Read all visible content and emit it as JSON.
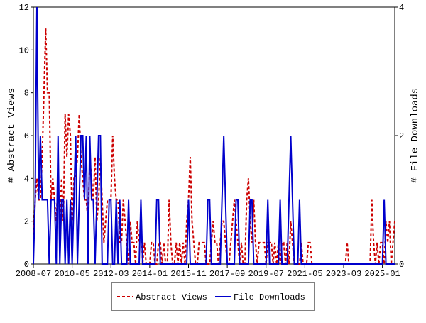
{
  "chart_data": {
    "type": "line",
    "x": [
      "2008-07",
      "2008-08",
      "2008-09",
      "2008-10",
      "2008-11",
      "2008-12",
      "2009-01",
      "2009-02",
      "2009-03",
      "2009-04",
      "2009-05",
      "2009-06",
      "2009-07",
      "2009-08",
      "2009-09",
      "2009-10",
      "2009-11",
      "2009-12",
      "2010-01",
      "2010-02",
      "2010-03",
      "2010-04",
      "2010-05",
      "2010-06",
      "2010-07",
      "2010-08",
      "2010-09",
      "2010-10",
      "2010-11",
      "2010-12",
      "2011-01",
      "2011-02",
      "2011-03",
      "2011-04",
      "2011-05",
      "2011-06",
      "2011-07",
      "2011-08",
      "2011-09",
      "2011-10",
      "2011-11",
      "2011-12",
      "2012-01",
      "2012-02",
      "2012-03",
      "2012-04",
      "2012-05",
      "2012-06",
      "2012-07",
      "2012-08",
      "2012-09",
      "2012-10",
      "2012-11",
      "2012-12",
      "2013-01",
      "2013-02",
      "2013-03",
      "2013-04",
      "2013-05",
      "2013-06",
      "2013-07",
      "2013-08",
      "2013-09",
      "2013-10",
      "2013-11",
      "2013-12",
      "2014-01",
      "2014-02",
      "2014-03",
      "2014-04",
      "2014-05",
      "2014-06",
      "2014-07",
      "2014-08",
      "2014-09",
      "2014-10",
      "2014-11",
      "2014-12",
      "2015-01",
      "2015-02",
      "2015-03",
      "2015-04",
      "2015-05",
      "2015-06",
      "2015-07",
      "2015-08",
      "2015-09",
      "2015-10",
      "2015-11",
      "2015-12",
      "2016-01",
      "2016-02",
      "2016-03",
      "2016-04",
      "2016-05",
      "2016-06",
      "2016-07",
      "2016-08",
      "2016-09",
      "2016-10",
      "2016-11",
      "2016-12",
      "2017-01",
      "2017-02",
      "2017-03",
      "2017-04",
      "2017-05",
      "2017-06",
      "2017-07",
      "2017-08",
      "2017-09",
      "2017-10",
      "2017-11",
      "2017-12",
      "2018-01",
      "2018-02",
      "2018-03",
      "2018-04",
      "2018-05",
      "2018-06",
      "2018-07",
      "2018-08",
      "2018-09",
      "2018-10",
      "2018-11",
      "2018-12",
      "2019-01",
      "2019-02",
      "2019-03",
      "2019-04",
      "2019-05",
      "2019-06",
      "2019-07",
      "2019-08",
      "2019-09",
      "2019-10",
      "2019-11",
      "2019-12",
      "2020-01",
      "2020-02",
      "2020-03",
      "2020-04",
      "2020-05",
      "2020-06",
      "2020-07",
      "2020-08",
      "2020-09",
      "2020-10",
      "2020-11",
      "2020-12",
      "2021-01",
      "2021-02",
      "2021-03",
      "2021-04",
      "2021-05",
      "2021-06",
      "2021-07",
      "2021-08",
      "2021-09",
      "2021-10",
      "2021-11",
      "2021-12",
      "2022-01",
      "2022-02",
      "2022-03",
      "2022-04",
      "2022-05",
      "2022-06",
      "2022-07",
      "2022-08",
      "2022-09",
      "2022-10",
      "2022-11",
      "2022-12",
      "2023-01",
      "2023-02",
      "2023-03",
      "2023-04",
      "2023-05",
      "2023-06",
      "2023-07",
      "2023-08",
      "2023-09",
      "2023-10",
      "2023-11",
      "2023-12",
      "2024-01",
      "2024-02",
      "2024-03",
      "2024-04",
      "2024-05",
      "2024-06",
      "2024-07",
      "2024-08",
      "2024-09",
      "2024-10",
      "2024-11",
      "2024-12",
      "2025-01",
      "2025-02",
      "2025-03",
      "2025-04",
      "2025-05",
      "2025-06",
      "2025-07",
      "2025-08"
    ],
    "xticks": [
      "2008-07",
      "2010-05",
      "2012-03",
      "2014-01",
      "2015-11",
      "2017-09",
      "2019-07",
      "2021-05",
      "2023-03",
      "2025-01"
    ],
    "y_label": "# Abstract Views",
    "y2_label": "# File Downloads",
    "ylim": [
      0,
      12
    ],
    "yticks": [
      0,
      2,
      4,
      6,
      8,
      10,
      12
    ],
    "y2lim": [
      0,
      4
    ],
    "y2ticks": [
      0,
      2,
      4
    ],
    "series": [
      {
        "name": "Abstract Views",
        "color": "#cc0000",
        "dashed": true,
        "values": [
          1,
          3,
          4,
          3,
          3,
          5,
          8,
          11,
          8,
          8,
          3,
          4,
          3,
          2,
          4,
          2,
          4,
          2,
          7,
          5,
          7,
          6,
          2,
          4,
          4,
          5,
          7,
          5,
          4,
          3,
          3,
          2,
          5,
          4,
          3,
          5,
          2,
          3,
          5,
          3,
          1,
          2,
          3,
          3,
          3,
          6,
          4,
          3,
          3,
          1,
          1,
          3,
          2,
          1,
          0,
          2,
          1,
          1,
          0,
          2,
          1,
          2,
          0,
          1,
          0,
          0,
          0,
          1,
          1,
          0,
          0,
          1,
          1,
          0,
          1,
          0,
          0,
          3,
          1,
          0,
          0,
          1,
          0,
          1,
          0,
          1,
          0,
          2,
          3,
          5,
          2,
          1,
          0,
          0,
          1,
          1,
          1,
          1,
          0,
          0,
          0,
          1,
          2,
          1,
          1,
          0,
          1,
          2,
          2,
          1,
          0,
          0,
          1,
          2,
          3,
          2,
          1,
          0,
          1,
          0,
          0,
          3,
          4,
          2,
          1,
          3,
          1,
          0,
          1,
          1,
          1,
          1,
          0,
          1,
          1,
          1,
          0,
          1,
          0,
          1,
          0,
          1,
          1,
          0,
          1,
          0,
          2,
          1,
          0,
          0,
          0,
          0,
          1,
          0,
          0,
          0,
          1,
          1,
          0,
          0,
          0,
          0,
          0,
          0,
          0,
          0,
          0,
          0,
          0,
          0,
          0,
          0,
          0,
          0,
          0,
          0,
          0,
          0,
          1,
          0,
          0,
          0,
          0,
          0,
          0,
          0,
          0,
          0,
          0,
          0,
          0,
          0,
          3,
          1,
          0,
          1,
          0,
          1,
          1,
          0,
          2,
          1,
          2,
          0,
          1,
          2
        ]
      },
      {
        "name": "File Downloads",
        "color": "#0000cc",
        "axis": "y2",
        "values": [
          0,
          1,
          4,
          1,
          2,
          1,
          1,
          1,
          1,
          0,
          1,
          1,
          1,
          0,
          2,
          0,
          1,
          1,
          0,
          1,
          0,
          1,
          0,
          1,
          2,
          0,
          1,
          2,
          2,
          1,
          2,
          0,
          2,
          1,
          1,
          0,
          1,
          2,
          2,
          0,
          0,
          0,
          0,
          1,
          1,
          0,
          0,
          1,
          0,
          1,
          0,
          0,
          0,
          0,
          1,
          0,
          0,
          0,
          0,
          0,
          0,
          1,
          0,
          0,
          0,
          0,
          0,
          0,
          0,
          0,
          1,
          1,
          0,
          0,
          0,
          0,
          0,
          0,
          0,
          0,
          0,
          0,
          0,
          0,
          0,
          0,
          0,
          0,
          1,
          0,
          0,
          0,
          0,
          0,
          0,
          0,
          0,
          0,
          0,
          1,
          1,
          0,
          0,
          0,
          0,
          0,
          0,
          1,
          2,
          1,
          0,
          0,
          0,
          0,
          0,
          1,
          1,
          0,
          0,
          0,
          0,
          0,
          0,
          1,
          1,
          0,
          0,
          0,
          0,
          0,
          0,
          0,
          0,
          1,
          0,
          0,
          0,
          0,
          0,
          0,
          1,
          0,
          0,
          0,
          0,
          1,
          2,
          1,
          0,
          0,
          0,
          1,
          0,
          0,
          0,
          0,
          0,
          0,
          0,
          0,
          0,
          0,
          0,
          0,
          0,
          0,
          0,
          0,
          0,
          0,
          0,
          0,
          0,
          0,
          0,
          0,
          0,
          0,
          0,
          0,
          0,
          0,
          0,
          0,
          0,
          0,
          0,
          0,
          0,
          0,
          0,
          0,
          0,
          0,
          0,
          0,
          0,
          0,
          0,
          1,
          0,
          0,
          0,
          0,
          0,
          0
        ]
      }
    ]
  }
}
